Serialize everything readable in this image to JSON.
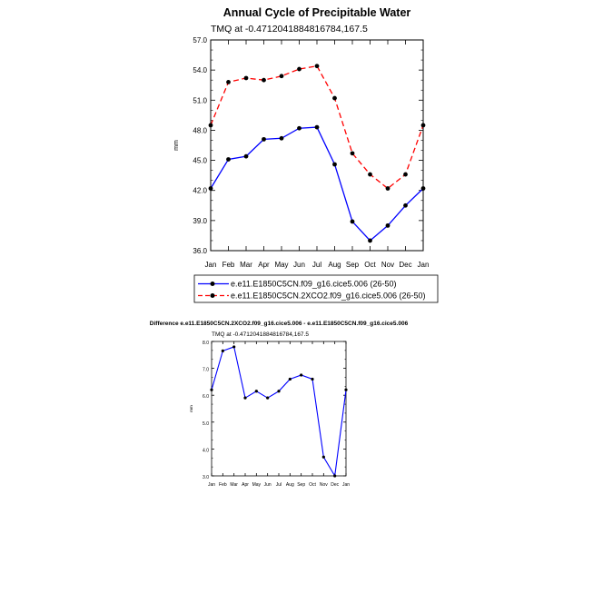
{
  "chart_data": [
    {
      "type": "line",
      "title": "Annual Cycle of Precipitable Water",
      "subtitle": "TMQ at -0.4712041884816784,167.5",
      "ylabel": "mm",
      "xlabel": "",
      "categories": [
        "Jan",
        "Feb",
        "Mar",
        "Apr",
        "May",
        "Jun",
        "Jul",
        "Aug",
        "Sep",
        "Oct",
        "Nov",
        "Dec",
        "Jan"
      ],
      "ylim": [
        36.0,
        57.0
      ],
      "yticks": [
        "36.0",
        "39.0",
        "42.0",
        "45.0",
        "48.0",
        "51.0",
        "54.0",
        "57.0"
      ],
      "series": [
        {
          "name": "e.e11.E1850C5CN.f09_g16.cice5.006 (26-50)",
          "color": "#0000ff",
          "dash": "solid",
          "values": [
            42.2,
            45.1,
            45.4,
            47.1,
            47.2,
            48.2,
            48.3,
            44.6,
            38.9,
            37.0,
            38.5,
            40.5,
            42.2
          ]
        },
        {
          "name": "e.e11.E1850C5CN.2XCO2.f09_g16.cice5.006 (26-50)",
          "color": "#ff0000",
          "dash": "dashed",
          "values": [
            48.5,
            52.8,
            53.2,
            53.0,
            53.4,
            54.1,
            54.4,
            51.2,
            45.7,
            43.6,
            42.2,
            43.6,
            48.5
          ]
        }
      ],
      "legend_position": "below"
    },
    {
      "type": "line",
      "title": "Difference e.e11.E1850C5CN.2XCO2.f09_g16.cice5.006 - e.e11.E1850C5CN.f09_g16.cice5.006",
      "subtitle": "TMQ at -0.4712041884816784,167.5",
      "ylabel": "mm",
      "xlabel": "",
      "categories": [
        "Jan",
        "Feb",
        "Mar",
        "Apr",
        "May",
        "Jun",
        "Jul",
        "Aug",
        "Sep",
        "Oct",
        "Nov",
        "Dec",
        "Jan"
      ],
      "ylim": [
        3.0,
        8.0
      ],
      "yticks": [
        "3.0",
        "4.0",
        "5.0",
        "6.0",
        "7.0",
        "8.0"
      ],
      "series": [
        {
          "name": "Difference",
          "color": "#0000ff",
          "dash": "solid",
          "values": [
            6.2,
            7.65,
            7.8,
            5.9,
            6.15,
            5.9,
            6.15,
            6.6,
            6.75,
            6.6,
            3.7,
            3.0,
            6.2
          ]
        }
      ]
    }
  ]
}
